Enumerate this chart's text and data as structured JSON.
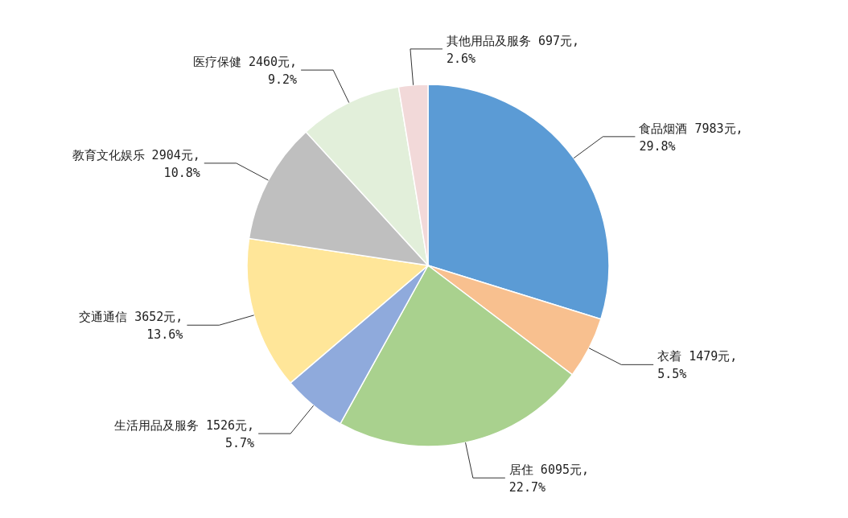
{
  "chart_data": {
    "type": "pie",
    "categories": [
      "食品烟酒",
      "衣着",
      "居住",
      "生活用品及服务",
      "交通通信",
      "教育文化娱乐",
      "医疗保健",
      "其他用品及服务"
    ],
    "values": [
      7983,
      1479,
      6095,
      1526,
      3652,
      2904,
      2460,
      697
    ],
    "value_labels": [
      "7983元, 29.8%",
      "1479元, 5.5%",
      "6095元, 22.7%",
      "1526元, 5.7%",
      "3652元, 13.6%",
      "2904元, 10.8%",
      "2460元, 9.2%",
      "697元, 2.6%"
    ],
    "colors": [
      "#5b9bd5",
      "#f8c08f",
      "#a9d18e",
      "#8faadc",
      "#ffe699",
      "#bfbfbf",
      "#e2efda",
      "#f2d9d9"
    ],
    "legend": false
  }
}
